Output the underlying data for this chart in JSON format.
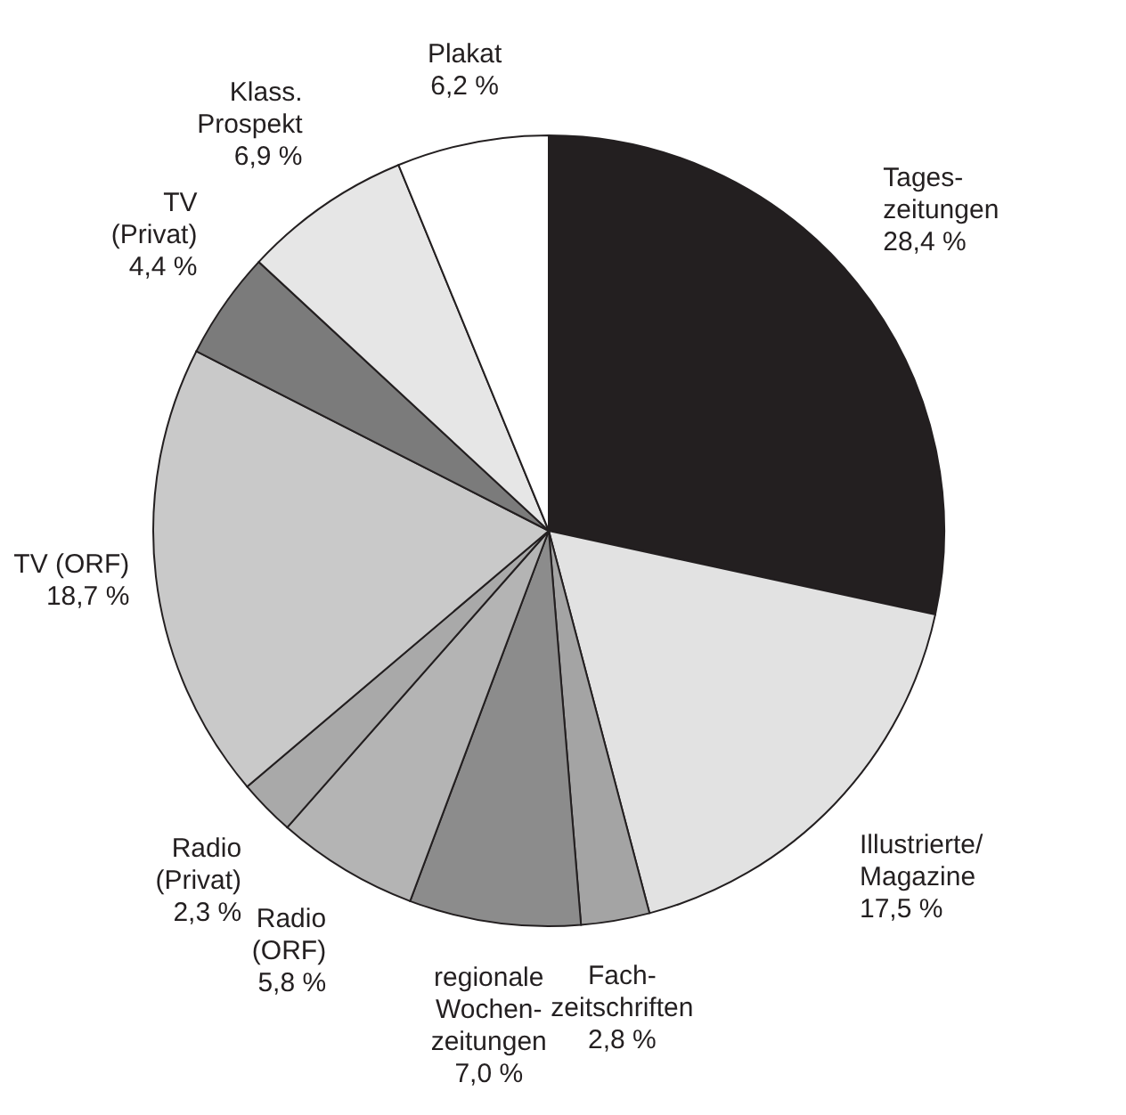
{
  "chart_data": {
    "type": "pie",
    "categories": [
      "Tages-\nzeitungen",
      "Illustrierte/\nMagazine",
      "Fach-\nzeitschriften",
      "regionale\nWochen-\nzeitungen",
      "Radio\n(ORF)",
      "Radio\n(Privat)",
      "TV (ORF)",
      "TV\n(Privat)",
      "Klass.\nProspekt",
      "Plakat"
    ],
    "values": [
      28.4,
      17.5,
      2.8,
      7.0,
      5.8,
      2.3,
      18.7,
      4.4,
      6.9,
      6.2
    ],
    "value_labels": [
      "28,4 %",
      "17,5 %",
      "2,8 %",
      "7,0 %",
      "5,8 %",
      "2,3 %",
      "18,7 %",
      "4,4 %",
      "6,9 %",
      "6,2 %"
    ],
    "colors": [
      "#231f20",
      "#e2e2e2",
      "#a4a4a4",
      "#8c8c8c",
      "#b4b4b4",
      "#a9a9a9",
      "#c9c9c9",
      "#7b7b7b",
      "#e6e6e6",
      "#ffffff"
    ]
  }
}
